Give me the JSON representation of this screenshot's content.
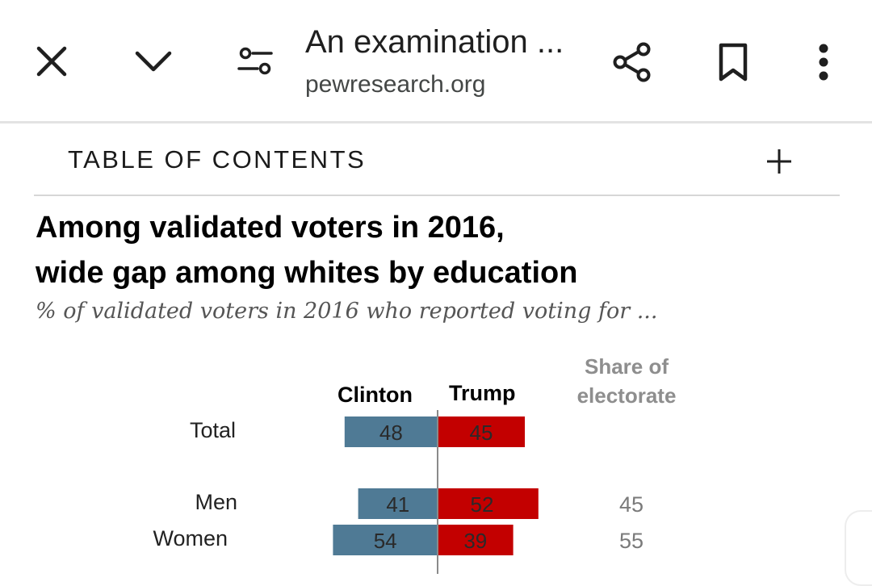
{
  "browser": {
    "page_title": "An examination ...",
    "url": "pewresearch.org",
    "icons": [
      "close-icon",
      "chevron-down-icon",
      "page-settings-icon",
      "share-icon",
      "bookmark-icon",
      "more-vert-icon"
    ]
  },
  "toc": {
    "label": "TABLE OF CONTENTS",
    "expand_icon": "plus-icon"
  },
  "chart": {
    "title_line1": "Among validated voters in 2016,",
    "title_line2": "wide gap among whites by education",
    "subtitle": "% of validated voters in 2016 who reported voting for ..."
  },
  "chart_data": {
    "type": "bar",
    "title": "Among validated voters in 2016, wide gap among whites by education",
    "subtitle": "% of validated voters in 2016 who reported voting for ...",
    "columns": [
      "Clinton",
      "Trump",
      "Share of electorate"
    ],
    "categories": [
      "Total",
      "Men",
      "Women"
    ],
    "series": [
      {
        "name": "Clinton",
        "values": [
          48,
          41,
          54
        ],
        "color": "#4f7a95"
      },
      {
        "name": "Trump",
        "values": [
          45,
          52,
          39
        ],
        "color": "#c30000"
      }
    ],
    "share_of_electorate": [
      "",
      "45",
      "55"
    ],
    "share_header": "Share of electorate",
    "layout": "diverging bars from center line"
  }
}
